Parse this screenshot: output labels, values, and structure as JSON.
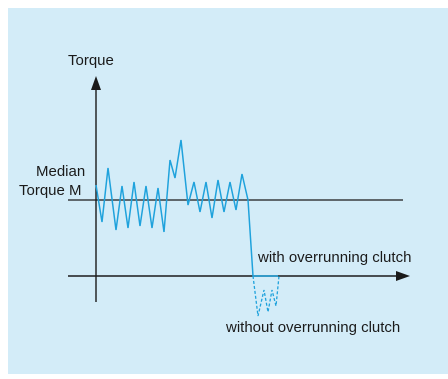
{
  "colors": {
    "background": "#d3ecf8",
    "axis": "#1a1a1a",
    "signal": "#1fa2dc"
  },
  "labels": {
    "y_axis": "Torque",
    "median_line1": "Median",
    "median_line2": "Torque M",
    "with_clutch": "with overrunning clutch",
    "without_clutch": "without overrunning clutch"
  }
}
